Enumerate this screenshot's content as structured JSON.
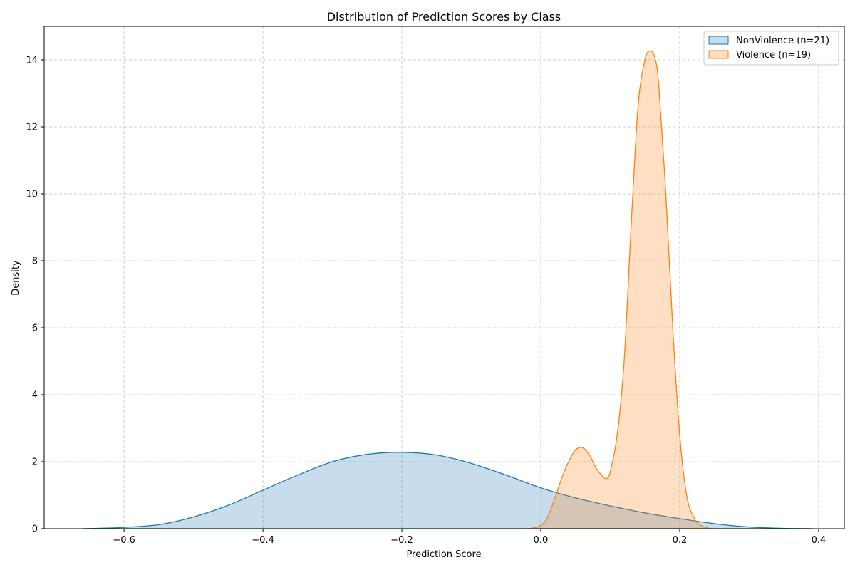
{
  "chart_data": {
    "type": "area",
    "title": "Distribution of Prediction Scores by Class",
    "xlabel": "Prediction Score",
    "ylabel": "Density",
    "xlim": [
      -0.715,
      0.437
    ],
    "ylim": [
      0,
      15
    ],
    "xticks": [
      -0.6,
      -0.4,
      -0.2,
      0.0,
      0.2,
      0.4
    ],
    "xtick_labels": [
      "−0.6",
      "−0.4",
      "−0.2",
      "0.0",
      "0.2",
      "0.4"
    ],
    "yticks": [
      0,
      2,
      4,
      6,
      8,
      10,
      12,
      14
    ],
    "ytick_labels": [
      "0",
      "2",
      "4",
      "6",
      "8",
      "10",
      "12",
      "14"
    ],
    "grid": true,
    "legend_position": "top-right",
    "series": [
      {
        "name": "NonViolence (n=21)",
        "color": "#1f77b4",
        "fill": "#1f77b4",
        "x": [
          -0.66,
          -0.62,
          -0.6,
          -0.55,
          -0.5,
          -0.45,
          -0.4,
          -0.35,
          -0.3,
          -0.25,
          -0.2,
          -0.15,
          -0.1,
          -0.05,
          0.0,
          0.05,
          0.1,
          0.15,
          0.2,
          0.25,
          0.3,
          0.35,
          0.39
        ],
        "y": [
          0.0,
          0.02,
          0.04,
          0.12,
          0.35,
          0.7,
          1.15,
          1.6,
          2.0,
          2.22,
          2.28,
          2.2,
          1.95,
          1.6,
          1.22,
          0.92,
          0.68,
          0.47,
          0.3,
          0.15,
          0.05,
          0.01,
          0.0
        ]
      },
      {
        "name": "Violence (n=19)",
        "color": "#ff7f0e",
        "fill": "#ff7f0e",
        "x": [
          -0.015,
          0.0,
          0.01,
          0.02,
          0.03,
          0.04,
          0.05,
          0.06,
          0.07,
          0.08,
          0.09,
          0.095,
          0.1,
          0.11,
          0.12,
          0.13,
          0.14,
          0.15,
          0.158,
          0.165,
          0.17,
          0.18,
          0.19,
          0.2,
          0.21,
          0.22,
          0.23,
          0.245
        ],
        "y": [
          0.0,
          0.1,
          0.35,
          0.9,
          1.5,
          2.0,
          2.35,
          2.42,
          2.2,
          1.8,
          1.55,
          1.5,
          1.7,
          2.8,
          5.0,
          9.0,
          12.6,
          14.0,
          14.27,
          14.0,
          13.2,
          10.0,
          6.0,
          2.8,
          1.0,
          0.35,
          0.1,
          0.0
        ]
      }
    ]
  }
}
